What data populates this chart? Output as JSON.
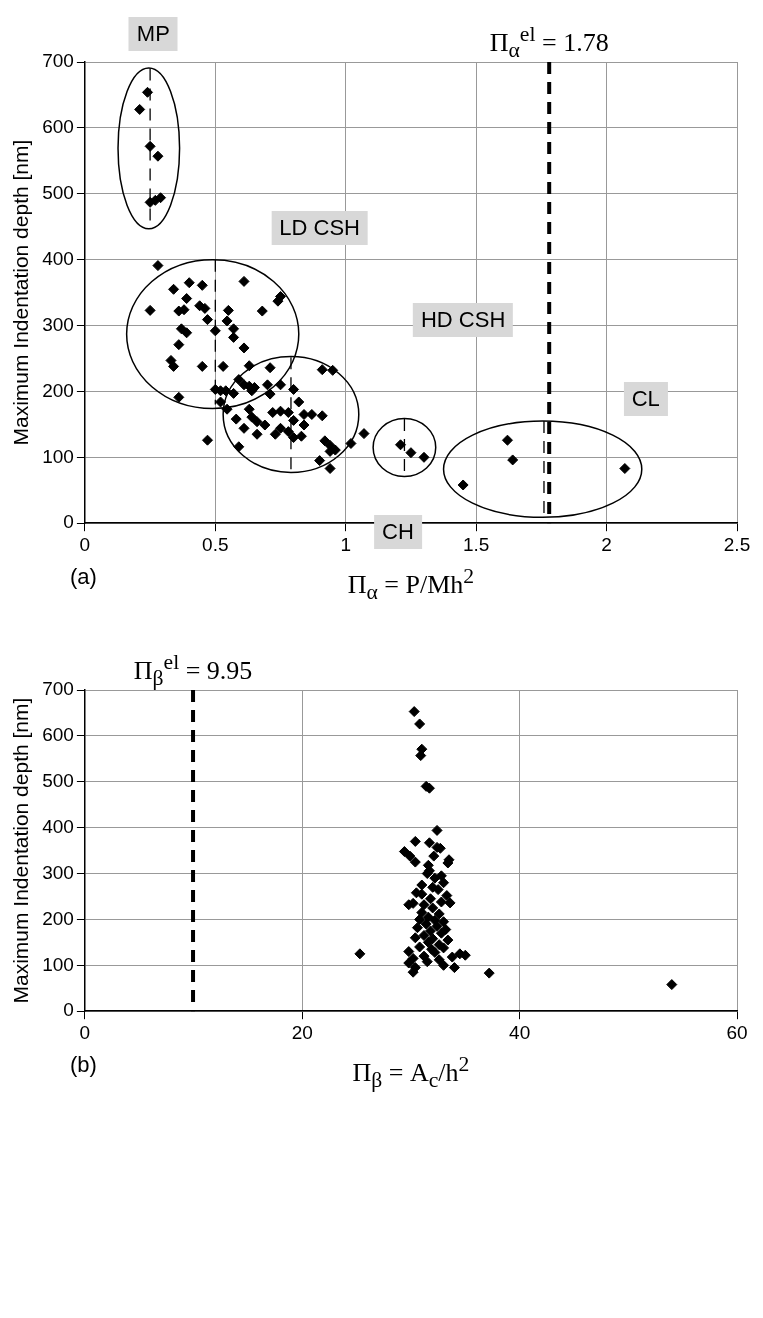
{
  "chart_data": [
    {
      "type": "scatter",
      "ylabel": "Maximum Indentation depth [nm]",
      "xlabel": "Π$_{α}$ = P/Mh$^{2}$",
      "xlim": [
        0,
        2.5
      ],
      "xticks": [
        0,
        0.5,
        1,
        1.5,
        2,
        2.5
      ],
      "ylim": [
        0,
        700
      ],
      "yticks": [
        0,
        100,
        200,
        300,
        400,
        500,
        600,
        700
      ],
      "grid": true,
      "legend": false,
      "marker": "diamond",
      "series": [
        {
          "color": "#000000",
          "x": [
            0.24,
            0.21,
            0.25,
            0.28,
            0.25,
            0.27,
            0.29,
            0.28,
            0.34,
            0.4,
            0.45,
            0.61,
            0.75,
            0.74,
            0.25,
            0.36,
            0.38,
            0.39,
            0.44,
            0.46,
            0.47,
            0.55,
            0.68,
            0.545,
            0.5,
            0.37,
            0.39,
            0.57,
            0.57,
            0.61,
            0.36,
            0.33,
            0.34,
            0.45,
            0.53,
            0.63,
            0.71,
            0.91,
            0.95,
            0.36,
            0.59,
            0.61,
            0.5,
            0.52,
            0.54,
            0.57,
            0.63,
            0.64,
            0.65,
            0.7,
            0.71,
            0.75,
            0.8,
            0.52,
            0.82,
            0.545,
            0.58,
            0.63,
            0.64,
            0.66,
            0.69,
            0.72,
            0.75,
            0.78,
            0.8,
            0.84,
            0.87,
            0.91,
            0.61,
            0.66,
            0.73,
            0.75,
            0.78,
            0.8,
            0.83,
            0.84,
            0.47,
            0.59,
            0.92,
            0.94,
            0.96,
            0.94,
            1.02,
            1.07,
            0.9,
            0.94,
            1.21,
            1.25,
            1.3,
            1.45,
            1.62,
            1.64,
            2.07
          ],
          "values": [
            654,
            628,
            572,
            557,
            487,
            490,
            494,
            391,
            355,
            365,
            361,
            367,
            344,
            337,
            323,
            322,
            324,
            341,
            330,
            326,
            309,
            323,
            322,
            307,
            292,
            295,
            289,
            295,
            282,
            266,
            271,
            247,
            238,
            238,
            238,
            239,
            236,
            233,
            232,
            191,
            218,
            210,
            203,
            201,
            201,
            197,
            208,
            201,
            206,
            210,
            196,
            210,
            203,
            184,
            184,
            173,
            158,
            173,
            161,
            154,
            149,
            168,
            170,
            168,
            156,
            165,
            165,
            163,
            144,
            135,
            135,
            144,
            139,
            130,
            132,
            149,
            126,
            116,
            125,
            118,
            111,
            109,
            121,
            136,
            95,
            83,
            119,
            107,
            100,
            58,
            126,
            96,
            83
          ]
        },
        {
          "type": "line",
          "color": "#000000",
          "line_style": "dashed",
          "marker": "none",
          "x": [
            0.25,
            0.25
          ],
          "values": [
            690,
            447
          ]
        },
        {
          "type": "line",
          "color": "#000000",
          "line_style": "dashed",
          "marker": "none",
          "x": [
            0.5,
            0.5
          ],
          "values": [
            400,
            180
          ]
        },
        {
          "type": "line",
          "color": "#000000",
          "line_style": "dashed",
          "marker": "none",
          "x": [
            0.79,
            0.79
          ],
          "values": [
            252,
            77
          ]
        },
        {
          "type": "line",
          "color": "#000000",
          "line_style": "dashed",
          "marker": "none",
          "x": [
            1.225,
            1.225
          ],
          "values": [
            158,
            71
          ]
        },
        {
          "type": "line",
          "color": "#000000",
          "line_style": "dashed",
          "marker": "none",
          "x": [
            1.76,
            1.76
          ],
          "values": [
            155,
            9
          ]
        }
      ],
      "ref_lines": [
        {
          "axis": "x",
          "value": 1.78,
          "label": "Π$_{α}$$^{el}$ = 1.78",
          "line_style": "dashed",
          "color": "#000000"
        }
      ],
      "annotations": [
        "MP",
        "LD CSH",
        "HD CSH",
        "CL",
        "CH",
        "(a)"
      ]
    },
    {
      "type": "scatter",
      "ylabel": "Maximum Indentation depth [nm]",
      "xlabel": "Π$_{β}$ = A$_{c}$/h$^{2}$",
      "xlim": [
        0,
        60
      ],
      "xticks": [
        0,
        20,
        40,
        60
      ],
      "ylim": [
        0,
        700
      ],
      "yticks": [
        0,
        100,
        200,
        300,
        400,
        500,
        600,
        700
      ],
      "grid": true,
      "legend": false,
      "marker": "diamond",
      "series": [
        {
          "color": "#000000",
          "x": [
            30.3,
            30.8,
            31.0,
            30.9,
            31.4,
            31.7,
            32.4,
            30.4,
            31.7,
            32.4,
            29.4,
            29.9,
            32.1,
            33.4,
            30.4,
            31.7,
            32.8,
            31.5,
            32.2,
            33.0,
            31.0,
            32.5,
            30.5,
            33.3,
            31.8,
            32.8,
            30.2,
            31.2,
            33.6,
            29.8,
            32.0,
            31.0,
            32.6,
            31.6,
            30.8,
            32.2,
            33.0,
            31.4,
            32.4,
            30.6,
            33.2,
            31.8,
            32.8,
            31.2,
            30.4,
            32.0,
            33.4,
            31.6,
            32.6,
            30.8,
            33.0,
            31.9,
            29.8,
            32.2,
            34.5,
            25.3,
            31.2,
            33.8,
            30.2,
            32.6,
            31.5,
            35.0,
            33.0,
            29.8,
            30.4,
            34.0,
            30.2,
            37.2,
            54,
            31.0,
            32.0,
            33.5,
            31.6,
            32.7
          ],
          "values": [
            653,
            626,
            571,
            557,
            490,
            486,
            394,
            370,
            367,
            357,
            348,
            338,
            338,
            323,
            325,
            306,
            295,
            300,
            290,
            280,
            275,
            265,
            258,
            252,
            245,
            238,
            235,
            232,
            236,
            232,
            225,
            215,
            212,
            205,
            200,
            198,
            195,
            190,
            185,
            182,
            178,
            175,
            170,
            165,
            160,
            158,
            155,
            150,
            145,
            140,
            138,
            135,
            130,
            128,
            125,
            125,
            120,
            118,
            115,
            112,
            108,
            122,
            100,
            105,
            95,
            95,
            85,
            83,
            58,
            255,
            270,
            330,
            318,
            355
          ]
        }
      ],
      "ref_lines": [
        {
          "axis": "x",
          "value": 9.95,
          "label": "Π$_{β}$$^{el}$ = 9.95",
          "line_style": "dashed",
          "color": "#000000"
        }
      ],
      "annotations": [
        "(b)"
      ]
    }
  ]
}
